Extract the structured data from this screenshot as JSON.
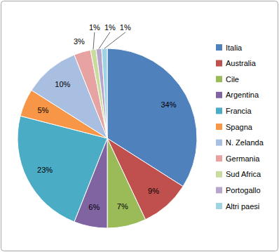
{
  "chart_data": {
    "type": "pie",
    "categories": [
      "Italia",
      "Australia",
      "Cile",
      "Argentina",
      "Francia",
      "Spagna",
      "N. Zelanda",
      "Germania",
      "Sud Africa",
      "Portogallo",
      "Altri paesi"
    ],
    "values": [
      34,
      9,
      7,
      6,
      23,
      5,
      10,
      3,
      1,
      1,
      1
    ],
    "value_labels": [
      "34%",
      "9%",
      "7%",
      "6%",
      "23%",
      "5%",
      "10%",
      "3%",
      "1%",
      "1%",
      "1%"
    ],
    "colors": [
      "#4f81bd",
      "#c0504d",
      "#9bbb59",
      "#8064a2",
      "#4bacc6",
      "#f79646",
      "#a9bfe2",
      "#e6a3a2",
      "#c9dc9e",
      "#b7a6cc",
      "#9fd3e3"
    ],
    "data_labels": true,
    "legend": "right"
  }
}
